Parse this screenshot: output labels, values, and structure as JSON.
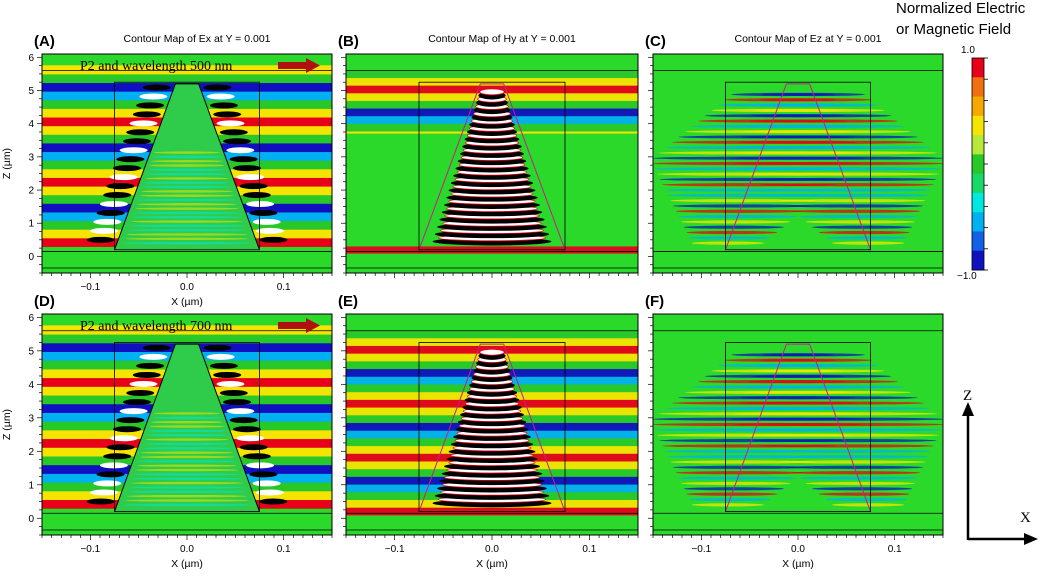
{
  "colorbar": {
    "title_line1": "Normalized Electric",
    "title_line2": "or Magnetic Field",
    "max_label": "1.0",
    "min_label": "−1.0",
    "colors": [
      "#e8001a",
      "#f07010",
      "#f5a800",
      "#f5e400",
      "#b6e83a",
      "#28c828",
      "#18d86a",
      "#00e8e0",
      "#00b0f0",
      "#1060e8",
      "#1010c0"
    ]
  },
  "axis_direction": {
    "z_label": "Z",
    "x_label": "X"
  },
  "chart_data": [
    {
      "type": "heatmap",
      "panel_label": "(A)",
      "title": "Contour Map of Ex at Y = 0.001",
      "xlabel": "X (µm)",
      "ylabel": "Z (µm)",
      "xticks": [
        "−0.1",
        "0.0",
        "0.1"
      ],
      "yticks": [
        "0",
        "1",
        "2",
        "3",
        "4",
        "5",
        "6"
      ],
      "xlim": [
        -0.15,
        0.15
      ],
      "ylim": [
        -0.5,
        6.1
      ],
      "annotation": "P2 and wavelength 500 nm",
      "field": "Ex",
      "accent_color": "#2bd92b"
    },
    {
      "type": "heatmap",
      "panel_label": "(B)",
      "title": "Contour Map of Hy at Y = 0.001",
      "xlabel": "",
      "ylabel": "",
      "xticks": [],
      "yticks": [],
      "xlim": [
        -0.15,
        0.15
      ],
      "ylim": [
        -0.5,
        6.1
      ],
      "annotation": "",
      "field": "Hy",
      "accent_color": "#2bd92b"
    },
    {
      "type": "heatmap",
      "panel_label": "(C)",
      "title": "Contour Map of Ez at Y = 0.001",
      "xlabel": "",
      "ylabel": "",
      "xticks": [],
      "yticks": [],
      "xlim": [
        -0.15,
        0.15
      ],
      "ylim": [
        -0.5,
        6.1
      ],
      "annotation": "",
      "field": "Ez",
      "accent_color": "#2bd92b"
    },
    {
      "type": "heatmap",
      "panel_label": "(D)",
      "title": "",
      "xlabel": "X (µm)",
      "ylabel": "Z (µm)",
      "xticks": [
        "−0.1",
        "0.0",
        "0.1"
      ],
      "yticks": [
        "0",
        "1",
        "2",
        "3",
        "4",
        "5",
        "6"
      ],
      "xlim": [
        -0.15,
        0.15
      ],
      "ylim": [
        -0.5,
        6.1
      ],
      "annotation": "P2 and wavelength 700 nm",
      "field": "Ex",
      "accent_color": "#2bd92b"
    },
    {
      "type": "heatmap",
      "panel_label": "(E)",
      "title": "",
      "xlabel": "X (µm)",
      "ylabel": "",
      "xticks": [
        "−0.1",
        "0.0",
        "0.1"
      ],
      "yticks": [],
      "xlim": [
        -0.15,
        0.15
      ],
      "ylim": [
        -0.5,
        6.1
      ],
      "annotation": "",
      "field": "Hy",
      "accent_color": "#2bd92b"
    },
    {
      "type": "heatmap",
      "panel_label": "(F)",
      "title": "",
      "xlabel": "X (µm)",
      "ylabel": "",
      "xticks": [
        "−0.1",
        "0.0",
        "0.1"
      ],
      "yticks": [],
      "xlim": [
        -0.15,
        0.15
      ],
      "ylim": [
        -0.5,
        6.1
      ],
      "annotation": "",
      "field": "Ez",
      "accent_color": "#2bd92b"
    }
  ]
}
